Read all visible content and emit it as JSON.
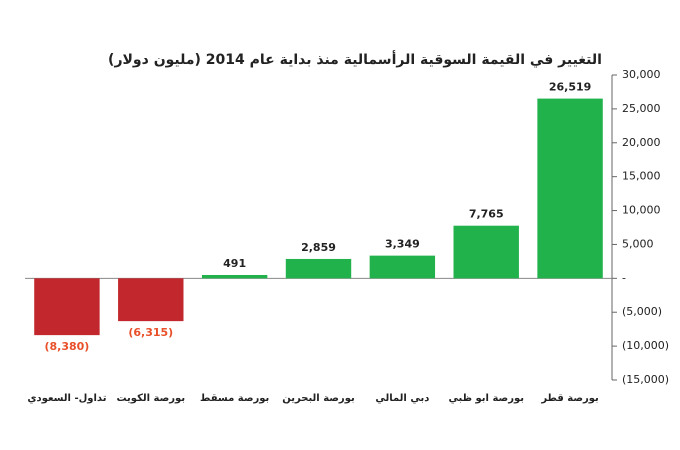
{
  "chart_data": {
    "type": "bar",
    "title": "التغيير في القيمة السوقية الرأسمالية منذ بداية عام 2014 (مليون دولار)",
    "categories": [
      "تداول- السعودي",
      "بورصة الكويت",
      "بورصة مسقط",
      "بورصة البحرين",
      "دبي المالي",
      "بورصة ابو ظبي",
      "بورصة قطر"
    ],
    "values": [
      -8380,
      -6315,
      491,
      2859,
      3349,
      7765,
      26519
    ],
    "value_labels": [
      "(8,380)",
      "(6,315)",
      "491",
      "2,859",
      "3,349",
      "7,765",
      "26,519"
    ],
    "colors": [
      "#c1272d",
      "#c1272d",
      "#21b24b",
      "#21b24b",
      "#21b24b",
      "#21b24b",
      "#21b24b"
    ],
    "ylim": [
      -15000,
      30000
    ],
    "yticks": [
      {
        "value": -15000,
        "label": "(15,000)"
      },
      {
        "value": -10000,
        "label": "(10,000)"
      },
      {
        "value": -5000,
        "label": "(5,000)"
      },
      {
        "value": 0,
        "label": "-"
      },
      {
        "value": 5000,
        "label": "5,000"
      },
      {
        "value": 10000,
        "label": "10,000"
      },
      {
        "value": 15000,
        "label": "15,000"
      },
      {
        "value": 20000,
        "label": "20,000"
      },
      {
        "value": 25000,
        "label": "25,000"
      },
      {
        "value": 30000,
        "label": "30,000"
      }
    ]
  }
}
